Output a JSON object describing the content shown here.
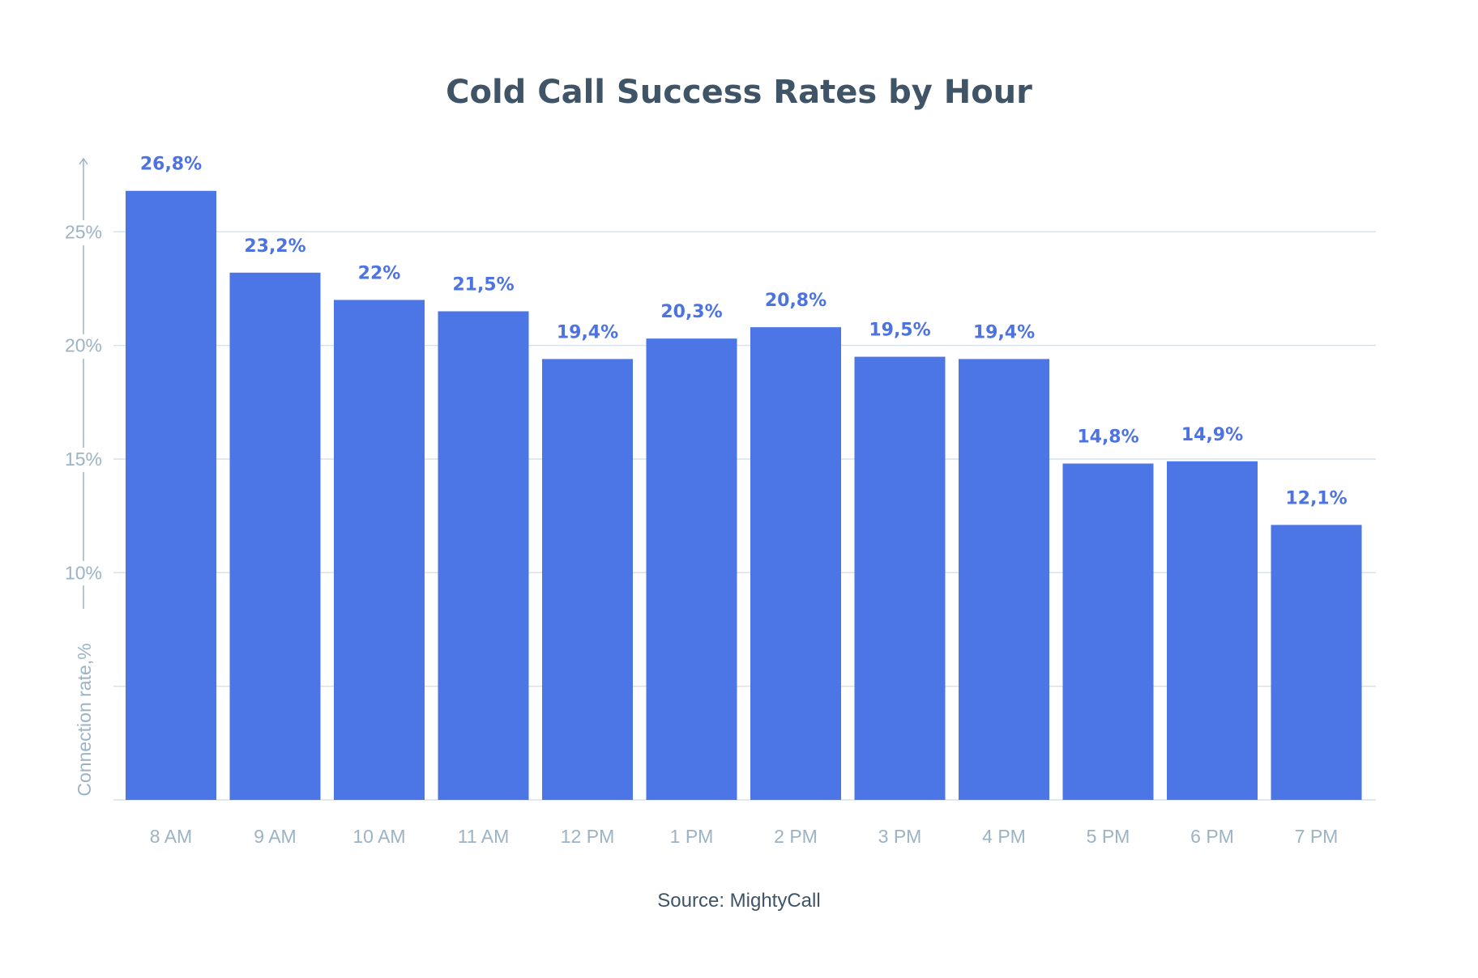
{
  "chart_data": {
    "type": "bar",
    "title": "Cold Call Success Rates by Hour",
    "source": "Source: MightyCall",
    "ylabel": "Connection rate,%",
    "xlabel": "",
    "ylim": [
      0,
      28
    ],
    "yticks": [
      0,
      5,
      10,
      15,
      20,
      25
    ],
    "ytick_labels": [
      "",
      "",
      "10%",
      "15%",
      "20%",
      "25%"
    ],
    "grid": true,
    "categories": [
      "8 AM",
      "9 AM",
      "10 AM",
      "11 AM",
      "12 PM",
      "1 PM",
      "2 PM",
      "3 PM",
      "4 PM",
      "5 PM",
      "6 PM",
      "7 PM"
    ],
    "values": [
      26.8,
      23.2,
      22,
      21.5,
      19.4,
      20.3,
      20.8,
      19.5,
      19.4,
      14.8,
      14.9,
      12.1
    ],
    "value_labels": [
      "26,8%",
      "23,2%",
      "22%",
      "21,5%",
      "19,4%",
      "20,3%",
      "20,8%",
      "19,5%",
      "19,4%",
      "14,8%",
      "14,9%",
      "12,1%"
    ],
    "colors": {
      "bar": "#4c76e6",
      "value_label": "#4c73e0",
      "axis_text": "#9bb3c5",
      "grid": "#d7e2ea",
      "title": "#3f5467"
    }
  }
}
